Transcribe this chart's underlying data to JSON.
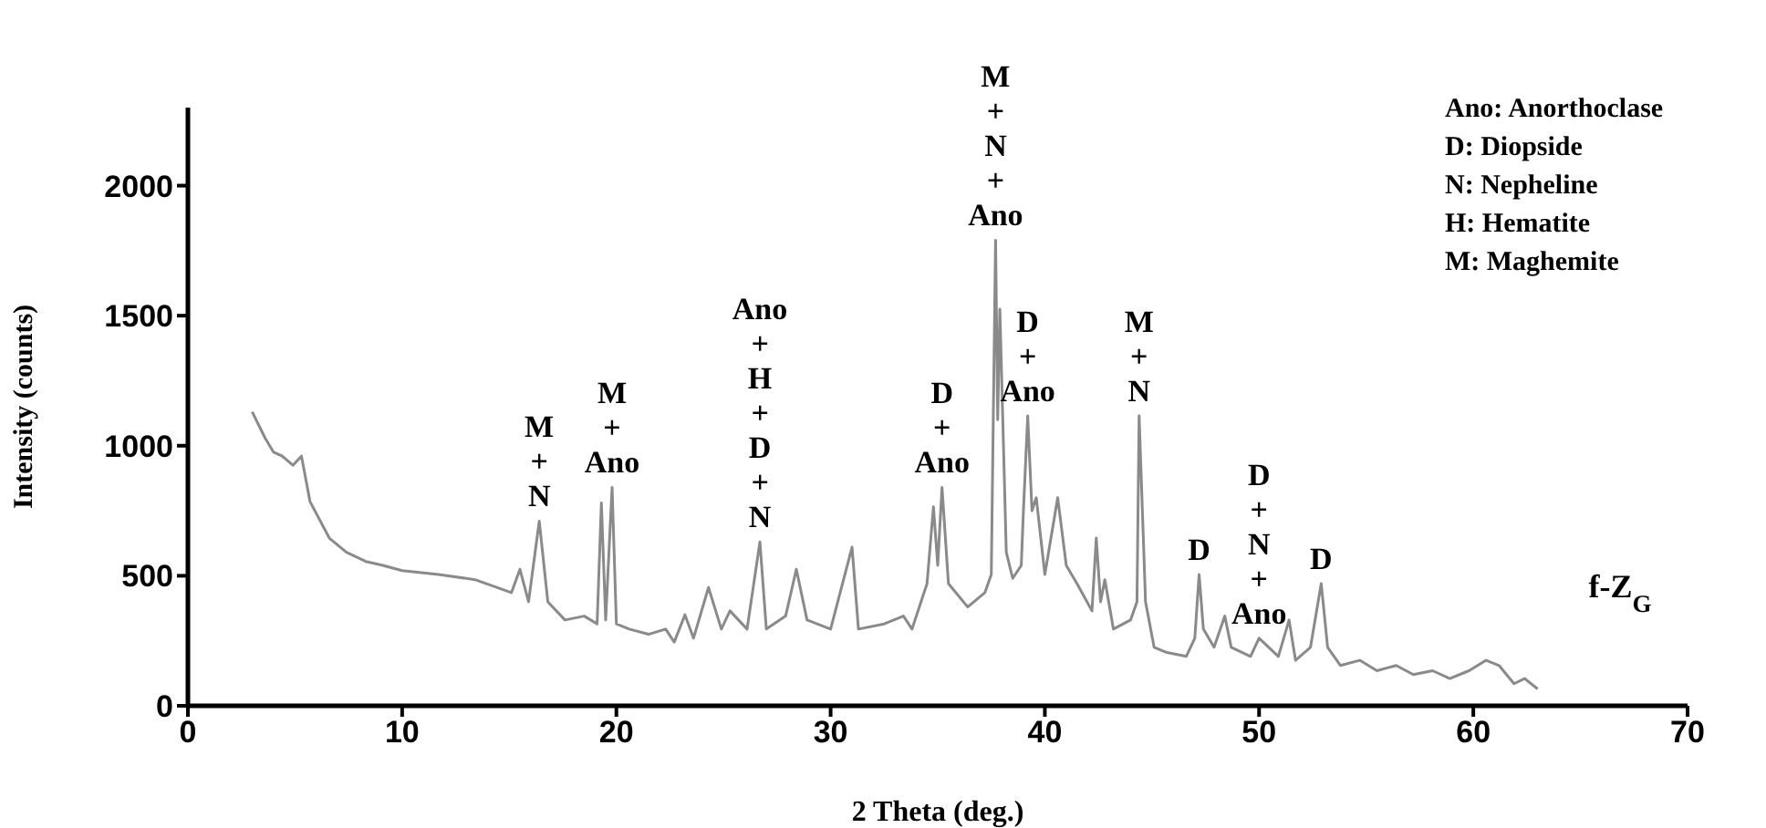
{
  "chart_data": {
    "type": "line",
    "xlabel": "2 Theta (deg.)",
    "ylabel": "Intensity (counts)",
    "xlim": [
      0,
      70
    ],
    "xticks": [
      0,
      10,
      20,
      30,
      40,
      50,
      60,
      70
    ],
    "ylim": [
      0,
      2300
    ],
    "yticks": [
      0,
      500,
      1000,
      1500,
      2000
    ],
    "x": [
      3.0,
      3.6,
      4.0,
      4.4,
      4.9,
      5.3,
      5.7,
      6.6,
      7.4,
      8.3,
      9.1,
      10.0,
      11.7,
      13.4,
      15.1,
      15.5,
      15.9,
      16.4,
      16.8,
      17.6,
      18.5,
      19.1,
      19.3,
      19.5,
      19.8,
      20.0,
      20.6,
      21.5,
      22.3,
      22.7,
      23.2,
      23.6,
      24.3,
      24.9,
      25.3,
      26.1,
      26.7,
      27.0,
      27.9,
      28.4,
      28.9,
      30.0,
      31.0,
      31.3,
      32.5,
      33.4,
      33.8,
      34.5,
      34.8,
      35.0,
      35.2,
      35.5,
      36.4,
      37.2,
      37.5,
      37.7,
      37.8,
      37.9,
      38.2,
      38.5,
      38.9,
      39.0,
      39.2,
      39.4,
      39.6,
      40.0,
      40.6,
      41.0,
      41.5,
      42.2,
      42.4,
      42.6,
      42.8,
      43.2,
      44.0,
      44.3,
      44.4,
      44.7,
      45.1,
      45.7,
      46.6,
      47.0,
      47.2,
      47.4,
      47.9,
      48.4,
      48.7,
      49.6,
      50.0,
      50.9,
      51.4,
      51.7,
      52.4,
      52.9,
      53.2,
      53.8,
      54.7,
      55.5,
      56.4,
      57.2,
      58.1,
      58.9,
      59.8,
      60.6,
      61.2,
      61.9,
      62.4,
      63.0
    ],
    "series": [
      {
        "name": "f-Z$_{G}$",
        "color": "#8a8a8a",
        "values": [
          1130,
          1030,
          975,
          960,
          925,
          960,
          785,
          645,
          590,
          555,
          540,
          520,
          505,
          485,
          435,
          525,
          400,
          710,
          400,
          330,
          345,
          315,
          780,
          330,
          840,
          315,
          295,
          275,
          295,
          245,
          350,
          260,
          455,
          295,
          365,
          295,
          630,
          295,
          345,
          525,
          330,
          295,
          610,
          295,
          315,
          345,
          295,
          470,
          765,
          540,
          840,
          470,
          380,
          435,
          505,
          1790,
          1100,
          1525,
          590,
          490,
          540,
          750,
          1115,
          750,
          800,
          505,
          800,
          540,
          470,
          365,
          645,
          400,
          485,
          295,
          330,
          400,
          1115,
          400,
          225,
          205,
          190,
          260,
          505,
          295,
          225,
          345,
          225,
          190,
          260,
          190,
          330,
          175,
          225,
          470,
          225,
          155,
          175,
          135,
          155,
          120,
          135,
          105,
          135,
          175,
          155,
          85,
          105,
          65
        ]
      }
    ],
    "annotations": [
      {
        "text": "M\n+\nN",
        "x": 16.4,
        "y": 710
      },
      {
        "text": "M\n+\nAno",
        "x": 19.8,
        "y": 840
      },
      {
        "text": "Ano\n+\nH\n+\nD\n+\nN",
        "x": 26.7,
        "y": 630
      },
      {
        "text": "D\n+\nAno",
        "x": 35.2,
        "y": 840
      },
      {
        "text": "M\n+\nN\n+\nAno",
        "x": 37.7,
        "y": 1790
      },
      {
        "text": "D\n+\nAno",
        "x": 39.2,
        "y": 1115
      },
      {
        "text": "M\n+\nN",
        "x": 44.4,
        "y": 1115
      },
      {
        "text": "D",
        "x": 47.2,
        "y": 505
      },
      {
        "text": "D\n+\nN\n+\nAno",
        "x": 50.0,
        "y": 260
      },
      {
        "text": "D",
        "x": 52.9,
        "y": 470
      },
      "Ano: Anorthoclase",
      "D: Diopside",
      "N: Nepheline",
      "H: Hematite",
      "M: Maghemite"
    ]
  }
}
